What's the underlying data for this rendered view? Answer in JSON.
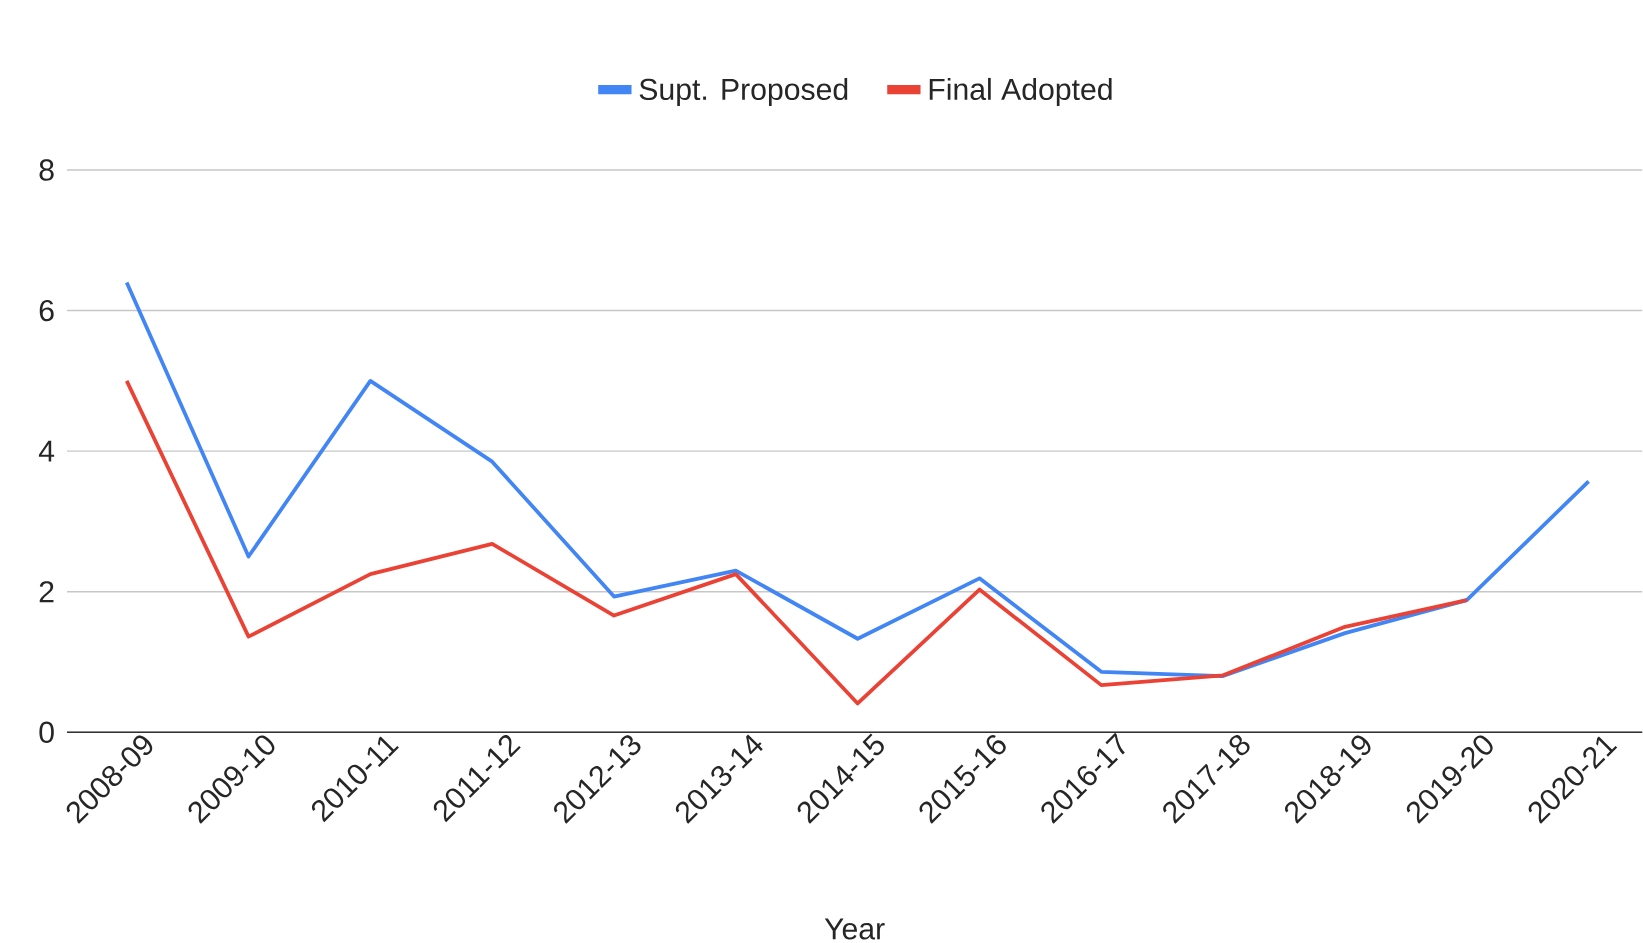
{
  "chart_data": {
    "type": "line",
    "xlabel": "Year",
    "categories": [
      "2008-09",
      "2009-10",
      "2010-11",
      "2011-12",
      "2012-13",
      "2013-14",
      "2014-15",
      "2015-16",
      "2016-17",
      "2017-18",
      "2018-19",
      "2019-20",
      "2020-21"
    ],
    "series": [
      {
        "name": "Supt. Proposed",
        "color": "#4285f4",
        "values": [
          6.4,
          2.5,
          5.0,
          3.85,
          1.93,
          2.3,
          1.33,
          2.19,
          0.86,
          0.8,
          1.41,
          1.88,
          3.57
        ]
      },
      {
        "name": "Final Adopted",
        "color": "#ea4335",
        "values": [
          5.0,
          1.36,
          2.25,
          2.68,
          1.66,
          2.25,
          0.41,
          2.03,
          0.67,
          0.81,
          1.5,
          1.88,
          null
        ]
      }
    ],
    "ylim": [
      0,
      8
    ],
    "yticks": [
      0,
      2,
      4,
      6,
      8
    ],
    "grid": "y",
    "legend": "top",
    "marker": "none",
    "line_style": "solid"
  }
}
